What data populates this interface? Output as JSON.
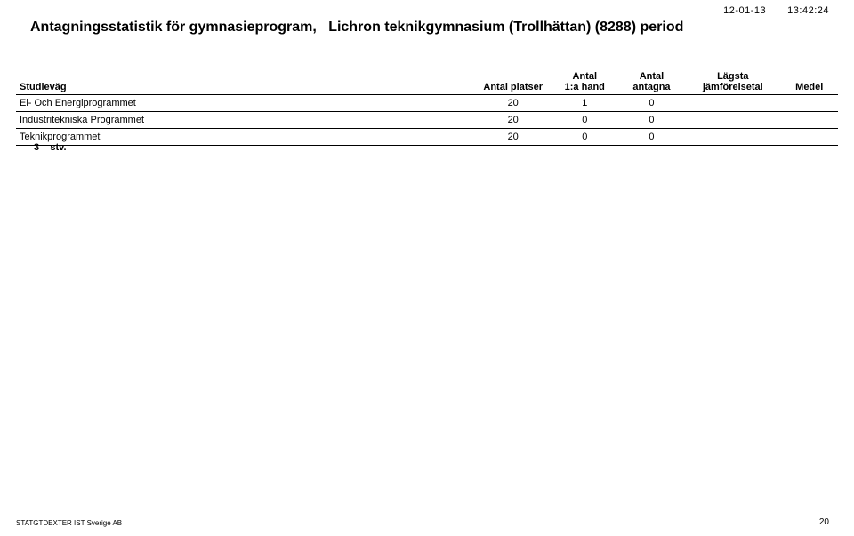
{
  "meta": {
    "date": "12-01-13",
    "time": "13:42:24"
  },
  "title": {
    "prefix": "Antagningsstatistik för gymnasieprogram,",
    "school": "Lichron teknikgymnasium (Trollhättan) (8288) period"
  },
  "table": {
    "columns": {
      "studievag": "Studieväg",
      "platser": "Antal platser",
      "hand_l1": "Antal",
      "hand_l2": "1:a hand",
      "antagna_l1": "Antal",
      "antagna_l2": "antagna",
      "lagsta_l1": "Lägsta",
      "lagsta_l2": "jämförelsetal",
      "medel": "Medel"
    },
    "rows": [
      {
        "name": "El- Och Energiprogrammet",
        "platser": "20",
        "hand": "1",
        "antagna": "0",
        "lagsta": "",
        "medel": ""
      },
      {
        "name": "Industritekniska Programmet",
        "platser": "20",
        "hand": "0",
        "antagna": "0",
        "lagsta": "",
        "medel": ""
      },
      {
        "name": "Teknikprogrammet",
        "platser": "20",
        "hand": "0",
        "antagna": "0",
        "lagsta": "",
        "medel": ""
      }
    ]
  },
  "summary": {
    "count": "3",
    "unit": "stv."
  },
  "footer": {
    "left": "STATGTDEXTER IST Sverige AB",
    "pagenum": "20"
  },
  "style": {
    "background": "#ffffff",
    "text_color": "#000000",
    "rule_color": "#000000",
    "title_fontsize": 16,
    "body_fontsize": 11,
    "footer_fontsize": 8
  }
}
